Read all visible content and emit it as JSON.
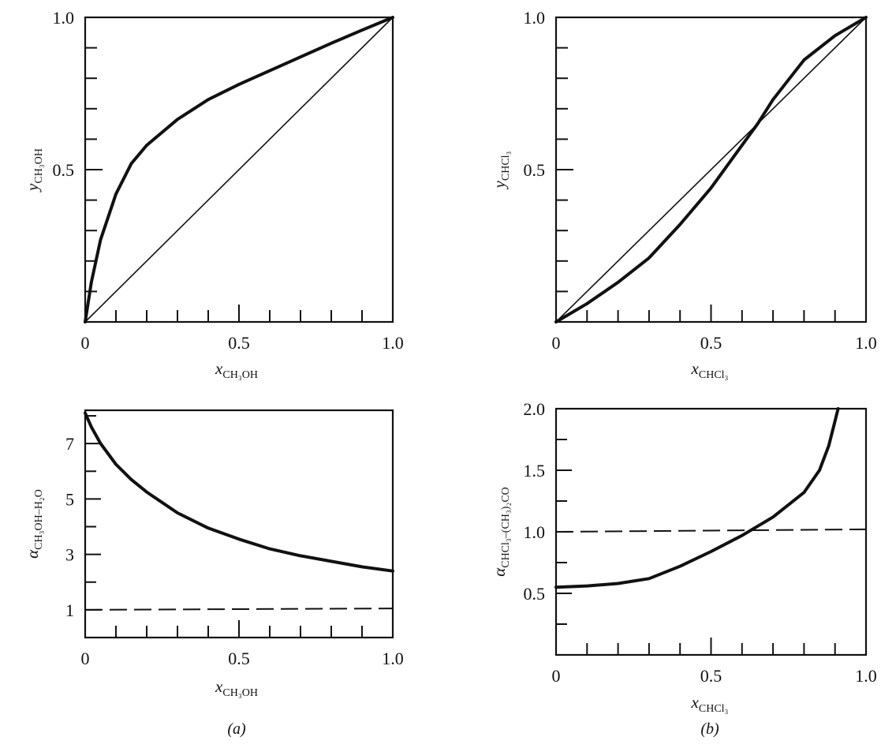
{
  "chart_data": [
    {
      "id": "a-top",
      "type": "line",
      "xlabel": "x",
      "xlabel_sub": "CH₃OH",
      "ylabel": "y",
      "ylabel_sub": "CH₃OH",
      "xlim": [
        0,
        1
      ],
      "ylim": [
        0,
        1
      ],
      "x_tick_labels": [
        {
          "value": 0,
          "label": "0"
        },
        {
          "value": 0.5,
          "label": "0.5"
        },
        {
          "value": 1,
          "label": "1.0"
        }
      ],
      "y_tick_labels": [
        {
          "value": 0.5,
          "label": "0.5"
        },
        {
          "value": 1,
          "label": "1.0"
        }
      ],
      "minor_ticks": 0.1,
      "grid": false,
      "series": [
        {
          "x": [
            0,
            0.02,
            0.05,
            0.1,
            0.15,
            0.2,
            0.3,
            0.4,
            0.5,
            0.6,
            0.7,
            0.8,
            0.9,
            1.0
          ],
          "y": [
            0,
            0.13,
            0.27,
            0.42,
            0.52,
            0.58,
            0.665,
            0.73,
            0.78,
            0.825,
            0.87,
            0.915,
            0.958,
            1.0
          ],
          "style": "thick"
        },
        {
          "x": [
            0,
            1
          ],
          "y": [
            0,
            1
          ],
          "style": "thin"
        }
      ]
    },
    {
      "id": "b-top",
      "type": "line",
      "xlabel": "x",
      "xlabel_sub": "CHCl₃",
      "ylabel": "y",
      "ylabel_sub": "CHCl₃",
      "xlim": [
        0,
        1
      ],
      "ylim": [
        0,
        1
      ],
      "x_tick_labels": [
        {
          "value": 0,
          "label": "0"
        },
        {
          "value": 0.5,
          "label": "0.5"
        },
        {
          "value": 1,
          "label": "1.0"
        }
      ],
      "y_tick_labels": [
        {
          "value": 0.5,
          "label": "0.5"
        },
        {
          "value": 1,
          "label": "1.0"
        }
      ],
      "minor_ticks": 0.1,
      "grid": false,
      "series": [
        {
          "x": [
            0,
            0.1,
            0.2,
            0.3,
            0.4,
            0.5,
            0.6,
            0.65,
            0.7,
            0.8,
            0.9,
            1.0
          ],
          "y": [
            0,
            0.06,
            0.13,
            0.21,
            0.32,
            0.44,
            0.58,
            0.65,
            0.73,
            0.86,
            0.94,
            1.0
          ],
          "style": "thick"
        },
        {
          "x": [
            0,
            1
          ],
          "y": [
            0,
            1
          ],
          "style": "thin"
        }
      ]
    },
    {
      "id": "a-bottom",
      "type": "line",
      "xlabel": "x",
      "xlabel_sub": "CH₃OH",
      "ylabel": "α",
      "ylabel_sub": "CH₃OH–H₂O",
      "xlim": [
        0,
        1
      ],
      "ylim": [
        0,
        8.2
      ],
      "x_tick_labels": [
        {
          "value": 0,
          "label": "0"
        },
        {
          "value": 0.5,
          "label": "0.5"
        },
        {
          "value": 1,
          "label": "1.0"
        }
      ],
      "y_tick_labels": [
        {
          "value": 1,
          "label": "1"
        },
        {
          "value": 3,
          "label": "3"
        },
        {
          "value": 5,
          "label": "5"
        },
        {
          "value": 7,
          "label": "7"
        }
      ],
      "minor_ticks": 0.1,
      "grid": false,
      "panel_label": "(a)",
      "series": [
        {
          "x": [
            0,
            0.02,
            0.05,
            0.1,
            0.15,
            0.2,
            0.3,
            0.4,
            0.5,
            0.6,
            0.7,
            0.8,
            0.9,
            1.0
          ],
          "y": [
            8.1,
            7.6,
            7.0,
            6.25,
            5.7,
            5.25,
            4.5,
            3.95,
            3.55,
            3.2,
            2.95,
            2.75,
            2.55,
            2.4
          ],
          "style": "thick"
        },
        {
          "x": [
            0,
            1
          ],
          "y": [
            1,
            1.05
          ],
          "style": "dashed"
        }
      ]
    },
    {
      "id": "b-bottom",
      "type": "line",
      "xlabel": "x",
      "xlabel_sub": "CHCl₃",
      "ylabel": "α",
      "ylabel_sub": "CHCl₃–(CH₃)₂CO",
      "xlim": [
        0,
        1
      ],
      "ylim": [
        0,
        2.0
      ],
      "x_tick_labels": [
        {
          "value": 0,
          "label": "0"
        },
        {
          "value": 0.5,
          "label": "0.5"
        },
        {
          "value": 1,
          "label": "1.0"
        }
      ],
      "y_tick_labels": [
        {
          "value": 0.5,
          "label": "0.5"
        },
        {
          "value": 1.0,
          "label": "1.0"
        },
        {
          "value": 1.5,
          "label": "1.5"
        },
        {
          "value": 2.0,
          "label": "2.0"
        }
      ],
      "minor_ticks": 0.1,
      "grid": false,
      "panel_label": "(b)",
      "series": [
        {
          "x": [
            0,
            0.1,
            0.2,
            0.3,
            0.4,
            0.5,
            0.6,
            0.7,
            0.8,
            0.85,
            0.88,
            0.9,
            0.91
          ],
          "y": [
            0.55,
            0.56,
            0.58,
            0.62,
            0.72,
            0.84,
            0.97,
            1.12,
            1.32,
            1.5,
            1.7,
            1.9,
            2.0
          ],
          "style": "thick"
        },
        {
          "x": [
            0,
            1
          ],
          "y": [
            1.0,
            1.02
          ],
          "style": "dashed"
        }
      ]
    }
  ]
}
